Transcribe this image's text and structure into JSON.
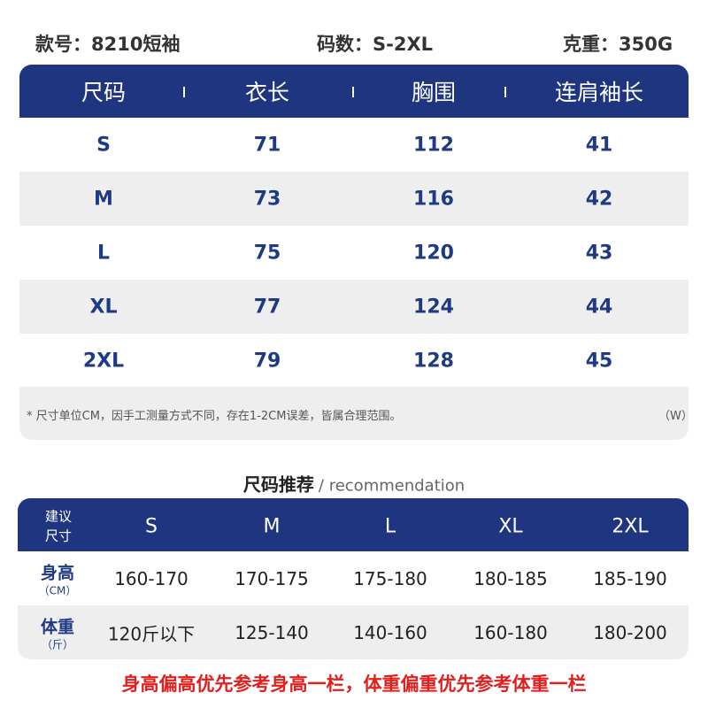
{
  "header": {
    "style_no": "款号：8210短袖",
    "size_range": "码数：S-2XL",
    "fabric_weight": "克重：350G"
  },
  "size_table": {
    "columns": [
      "尺码",
      "衣长",
      "胸围",
      "连肩袖长"
    ],
    "rows": [
      [
        "S",
        71,
        112,
        41
      ],
      [
        "M",
        73,
        116,
        42
      ],
      [
        "L",
        75,
        120,
        43
      ],
      [
        "XL",
        77,
        124,
        44
      ],
      [
        "2XL",
        79,
        128,
        45
      ]
    ],
    "note": "* 尺寸单位CM，因手工测量方式不同，存在1-2CM误差，皆属合理范围。",
    "note_tag": "（W）"
  },
  "recommendation": {
    "title": "尺码推荐",
    "subtitle": "/ recommendation",
    "corner": [
      "建议",
      "尺寸"
    ],
    "sizes": [
      "S",
      "M",
      "L",
      "XL",
      "2XL"
    ],
    "rows": [
      {
        "label": "身高",
        "unit": "（CM）",
        "values": [
          "160-170",
          "170-175",
          "175-180",
          "180-185",
          "185-190"
        ]
      },
      {
        "label": "体重",
        "unit": "（斤）",
        "values": [
          "120斤以下",
          "125-140",
          "140-160",
          "160-180",
          "180-200"
        ]
      }
    ]
  },
  "footer_note": "身高偏高优先参考身高一栏，体重偏重优先参考体重一栏"
}
